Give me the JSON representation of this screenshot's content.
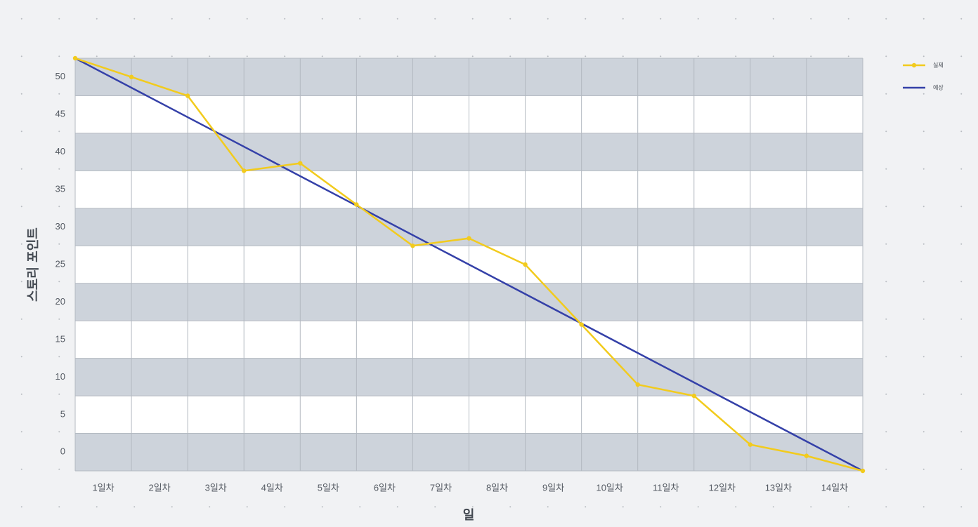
{
  "colors": {
    "actual": "#f2cb1d",
    "ideal": "#3440a8",
    "band_dark": "#cdd3db",
    "band_light": "#ffffff",
    "grid": "#b3b9c1",
    "background": "#f1f2f4"
  },
  "chart_data": {
    "type": "line",
    "categories": [
      "1일차",
      "2일차",
      "3일차",
      "4일차",
      "5일차",
      "6일차",
      "7일차",
      "8일차",
      "9일차",
      "10일차",
      "11일차",
      "12일차",
      "13일차",
      "14일차"
    ],
    "xlabel": "일",
    "ylabel": "스토리 포인트",
    "yticks": [
      0,
      5,
      10,
      15,
      20,
      25,
      30,
      35,
      40,
      45,
      50
    ],
    "ylim": [
      -2.5,
      52.5
    ],
    "grid": true,
    "legend_position": "top-right",
    "series": [
      {
        "name": "실제",
        "color": "#f2cb1d",
        "marker": "circle",
        "x": [
          0,
          1,
          2,
          3,
          4,
          5,
          6,
          7,
          8,
          9,
          10,
          11,
          12,
          13,
          14
        ],
        "values": [
          52.5,
          50,
          47.5,
          37.5,
          38.5,
          33,
          27.5,
          28.5,
          25,
          17,
          9,
          7.5,
          1,
          -0.5,
          -2.5
        ]
      },
      {
        "name": "예상",
        "color": "#3440a8",
        "marker": "none",
        "x": [
          0,
          14
        ],
        "values": [
          52.5,
          -2.5
        ]
      }
    ]
  }
}
